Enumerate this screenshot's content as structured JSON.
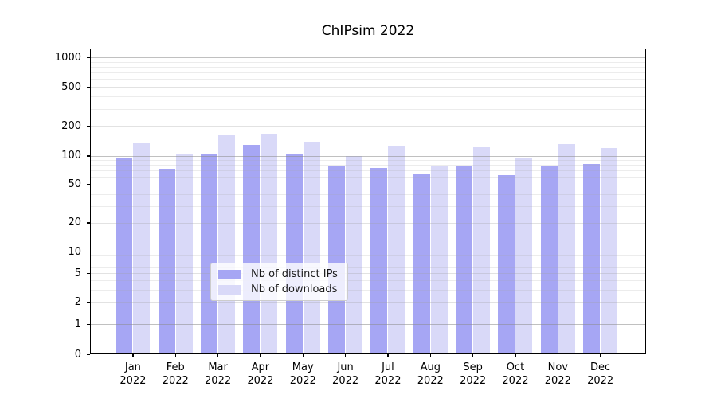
{
  "title": "ChIPsim 2022",
  "chart_data": {
    "type": "bar",
    "title": "ChIPsim 2022",
    "categories": [
      "Jan 2022",
      "Feb 2022",
      "Mar 2022",
      "Apr 2022",
      "May 2022",
      "Jun 2022",
      "Jul 2022",
      "Aug 2022",
      "Sep 2022",
      "Oct 2022",
      "Nov 2022",
      "Dec 2022"
    ],
    "series": [
      {
        "name": "Nb of distinct IPs",
        "color": "#a6a6f4",
        "values": [
          94,
          73,
          104,
          127,
          104,
          79,
          74,
          64,
          77,
          62,
          78,
          82
        ]
      },
      {
        "name": "Nb of downloads",
        "color": "#d9d9f8",
        "values": [
          133,
          105,
          160,
          166,
          134,
          99,
          125,
          78,
          120,
          95,
          131,
          119
        ]
      }
    ],
    "yscale": "log-like (linear below 1, logarithmic above)",
    "yticks": [
      0,
      1,
      2,
      5,
      10,
      20,
      50,
      100,
      200,
      500,
      1000
    ],
    "ylim": [
      0,
      1230
    ],
    "xlabel": "",
    "ylabel": "",
    "grid": true,
    "legend_position": "lower center"
  }
}
